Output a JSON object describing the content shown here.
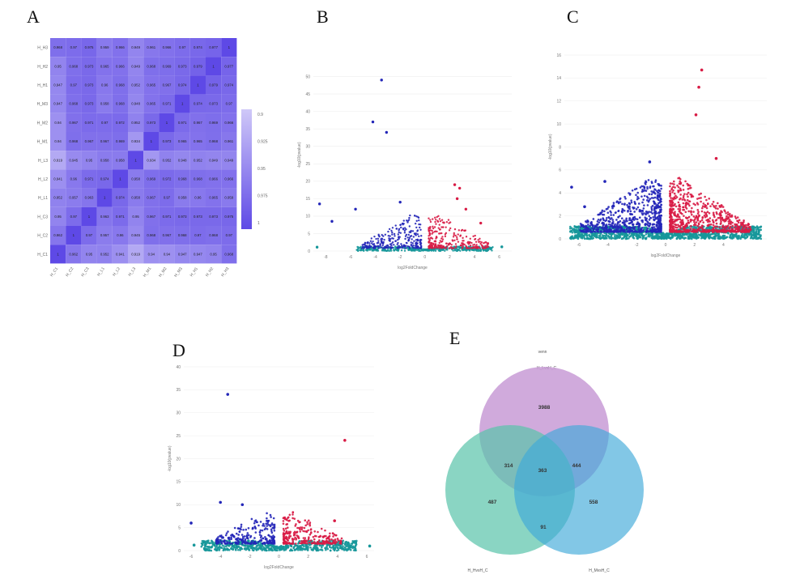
{
  "panels": {
    "a": "A",
    "b": "B",
    "c": "C",
    "d": "D",
    "e": "E"
  },
  "colors": {
    "up": "#d81b45",
    "down": "#2326b8",
    "ns": "#16979a",
    "heat_low": "#ffffff",
    "heat_high": "#5e49e6",
    "venn_top": "#c89bd6",
    "venn_left": "#58c3a9",
    "venn_right": "#3fa9d9"
  },
  "heatmap": {
    "rows": [
      "H_H3",
      "H_H2",
      "H_H1",
      "H_M3",
      "H_M2",
      "H_M1",
      "H_L3",
      "H_L2",
      "H_L1",
      "H_C3",
      "H_C2",
      "H_C1"
    ],
    "cols": [
      "H_C1",
      "H_C2",
      "H_C3",
      "H_L1",
      "H_L2",
      "H_L3",
      "H_M1",
      "H_M2",
      "H_M3",
      "H_H1",
      "H_H2",
      "H_H3"
    ],
    "values": [
      [
        "0.968",
        "0.97",
        "0.975",
        "0.959",
        "0.966",
        "0.949",
        "0.961",
        "0.966",
        "0.97",
        "0.974",
        "0.977",
        "1"
      ],
      [
        "0.95",
        "0.968",
        "0.973",
        "0.965",
        "0.966",
        "0.949",
        "0.968",
        "0.969",
        "0.973",
        "0.979",
        "1",
        "0.977"
      ],
      [
        "0.947",
        "0.97",
        "0.973",
        "0.96",
        "0.968",
        "0.952",
        "0.965",
        "0.967",
        "0.974",
        "1",
        "0.979",
        "0.974"
      ],
      [
        "0.947",
        "0.968",
        "0.973",
        "0.958",
        "0.968",
        "0.948",
        "0.965",
        "0.971",
        "1",
        "0.974",
        "0.973",
        "0.97"
      ],
      [
        "0.94",
        "0.967",
        "0.971",
        "0.97",
        "0.972",
        "0.952",
        "0.973",
        "1",
        "0.971",
        "0.967",
        "0.969",
        "0.966"
      ],
      [
        "0.94",
        "0.968",
        "0.967",
        "0.967",
        "0.969",
        "0.934",
        "1",
        "0.973",
        "0.965",
        "0.965",
        "0.968",
        "0.961"
      ],
      [
        "0.919",
        "0.945",
        "0.95",
        "0.958",
        "0.958",
        "1",
        "0.934",
        "0.952",
        "0.948",
        "0.952",
        "0.949",
        "0.949"
      ],
      [
        "0.941",
        "0.96",
        "0.971",
        "0.974",
        "1",
        "0.958",
        "0.969",
        "0.972",
        "0.968",
        "0.968",
        "0.966",
        "0.966"
      ],
      [
        "0.952",
        "0.957",
        "0.963",
        "1",
        "0.974",
        "0.958",
        "0.967",
        "0.97",
        "0.958",
        "0.96",
        "0.965",
        "0.959"
      ],
      [
        "0.95",
        "0.97",
        "1",
        "0.963",
        "0.971",
        "0.95",
        "0.967",
        "0.971",
        "0.973",
        "0.973",
        "0.973",
        "0.975"
      ],
      [
        "0.962",
        "1",
        "0.97",
        "0.957",
        "0.96",
        "0.945",
        "0.968",
        "0.967",
        "0.968",
        "0.97",
        "0.968",
        "0.97"
      ],
      [
        "1",
        "0.962",
        "0.95",
        "0.952",
        "0.941",
        "0.919",
        "0.94",
        "0.94",
        "0.947",
        "0.947",
        "0.95",
        "0.968"
      ]
    ],
    "legend_ticks": [
      "0.9",
      "0.925",
      "0.95",
      "0.975",
      "1"
    ]
  },
  "chart_data": [
    {
      "type": "scatter",
      "panel": "B",
      "xlabel": "log2FoldChange",
      "ylabel": "-log10(pvalue)",
      "xlim": [
        -9,
        7
      ],
      "ylim": [
        0,
        55
      ],
      "xticks": [
        "-8",
        "-6",
        "-4",
        "-2",
        "0",
        "2",
        "4",
        "6"
      ],
      "yticks": [
        "0",
        "5",
        "10",
        "15",
        "20",
        "25",
        "30",
        "35",
        "40",
        "45",
        "50"
      ],
      "outliers": [
        {
          "x": -3.5,
          "y": 49,
          "cls": "down"
        },
        {
          "x": -4.2,
          "y": 37,
          "cls": "down"
        },
        {
          "x": -3.1,
          "y": 34,
          "cls": "down"
        },
        {
          "x": -8.5,
          "y": 13.5,
          "cls": "down"
        },
        {
          "x": -7.5,
          "y": 8.5,
          "cls": "down"
        },
        {
          "x": -5.6,
          "y": 12,
          "cls": "down"
        },
        {
          "x": -2,
          "y": 14,
          "cls": "down"
        },
        {
          "x": 2.4,
          "y": 19,
          "cls": "up"
        },
        {
          "x": 2.8,
          "y": 18,
          "cls": "up"
        },
        {
          "x": 2.6,
          "y": 15,
          "cls": "up"
        },
        {
          "x": 3.3,
          "y": 12,
          "cls": "up"
        },
        {
          "x": 4.5,
          "y": 8,
          "cls": "up"
        },
        {
          "x": 6.2,
          "y": 1.2,
          "cls": "ns"
        },
        {
          "x": -8.7,
          "y": 1.1,
          "cls": "ns"
        }
      ]
    },
    {
      "type": "scatter",
      "panel": "C",
      "xlabel": "log2FoldChange",
      "ylabel": "-log10(pvalue)",
      "xlim": [
        -7,
        7
      ],
      "ylim": [
        0,
        16
      ],
      "xticks": [
        "-6",
        "-4",
        "-2",
        "0",
        "2",
        "4"
      ],
      "yticks": [
        "0",
        "2",
        "4",
        "6",
        "8",
        "10",
        "12",
        "14",
        "16"
      ],
      "outliers": [
        {
          "x": 2.5,
          "y": 14.7,
          "cls": "up"
        },
        {
          "x": 2.3,
          "y": 13.2,
          "cls": "up"
        },
        {
          "x": 2.1,
          "y": 10.8,
          "cls": "up"
        },
        {
          "x": 3.5,
          "y": 7,
          "cls": "up"
        },
        {
          "x": -6.5,
          "y": 4.5,
          "cls": "down"
        },
        {
          "x": -4.2,
          "y": 5,
          "cls": "down"
        },
        {
          "x": -5.6,
          "y": 2.8,
          "cls": "down"
        },
        {
          "x": -5.8,
          "y": 0.9,
          "cls": "ns"
        },
        {
          "x": -1.1,
          "y": 6.7,
          "cls": "down"
        }
      ]
    },
    {
      "type": "scatter",
      "panel": "D",
      "xlabel": "log2FoldChange",
      "ylabel": "-log10(pvalue)",
      "xlim": [
        -6.5,
        6.5
      ],
      "ylim": [
        0,
        40
      ],
      "xticks": [
        "-6",
        "-4",
        "-2",
        "0",
        "2",
        "4",
        "6"
      ],
      "yticks": [
        "0",
        "5",
        "10",
        "15",
        "20",
        "25",
        "30",
        "35",
        "40"
      ],
      "outliers": [
        {
          "x": -3.5,
          "y": 34,
          "cls": "down"
        },
        {
          "x": 4.5,
          "y": 24,
          "cls": "up"
        },
        {
          "x": -4,
          "y": 10.5,
          "cls": "down"
        },
        {
          "x": -2.5,
          "y": 10,
          "cls": "down"
        },
        {
          "x": -6,
          "y": 6,
          "cls": "down"
        },
        {
          "x": 3.8,
          "y": 6.5,
          "cls": "up"
        },
        {
          "x": -5.8,
          "y": 1.2,
          "cls": "ns"
        },
        {
          "x": -5,
          "y": 1.5,
          "cls": "ns"
        },
        {
          "x": 6.2,
          "y": 1,
          "cls": "ns"
        }
      ]
    }
  ],
  "venn": {
    "title": "venn",
    "labels": {
      "top": "H_LvsH_C",
      "left": "H_HvsH_C",
      "right": "H_MvsH_C"
    },
    "counts": {
      "top_only": "3988",
      "left_only": "487",
      "right_only": "558",
      "top_left": "314",
      "top_right": "444",
      "left_right": "91",
      "all": "363"
    }
  }
}
